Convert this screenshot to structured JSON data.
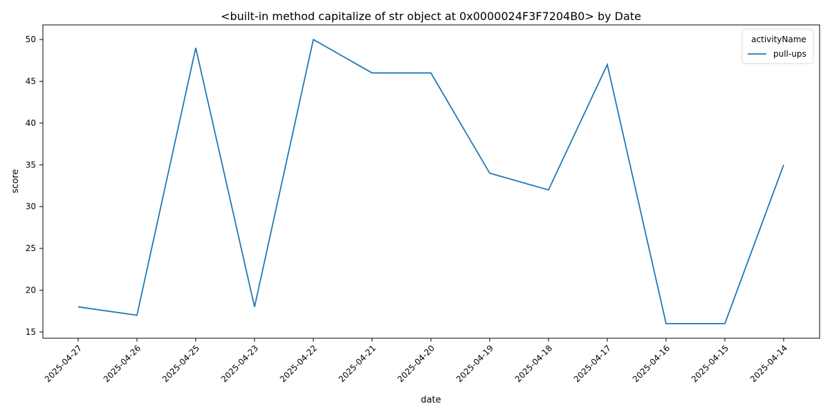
{
  "chart_data": {
    "type": "line",
    "title": "<built-in method capitalize of str object at 0x0000024F3F7204B0> by Date",
    "xlabel": "date",
    "ylabel": "score",
    "categories": [
      "2025-04-27",
      "2025-04-26",
      "2025-04-25",
      "2025-04-23",
      "2025-04-22",
      "2025-04-21",
      "2025-04-20",
      "2025-04-19",
      "2025-04-18",
      "2025-04-17",
      "2025-04-16",
      "2025-04-15",
      "2025-04-14"
    ],
    "series": [
      {
        "name": "pull-ups",
        "color": "#1f77b4",
        "values": [
          18,
          17,
          49,
          18,
          50,
          46,
          46,
          34,
          32,
          47,
          16,
          16,
          35
        ]
      }
    ],
    "ylim": [
      14.25,
      51.75
    ],
    "yticks": [
      15,
      20,
      25,
      30,
      35,
      40,
      45,
      50
    ],
    "x_tick_rotation": 45,
    "grid": false,
    "legend": {
      "title": "activityName",
      "placement": "top-right"
    }
  }
}
